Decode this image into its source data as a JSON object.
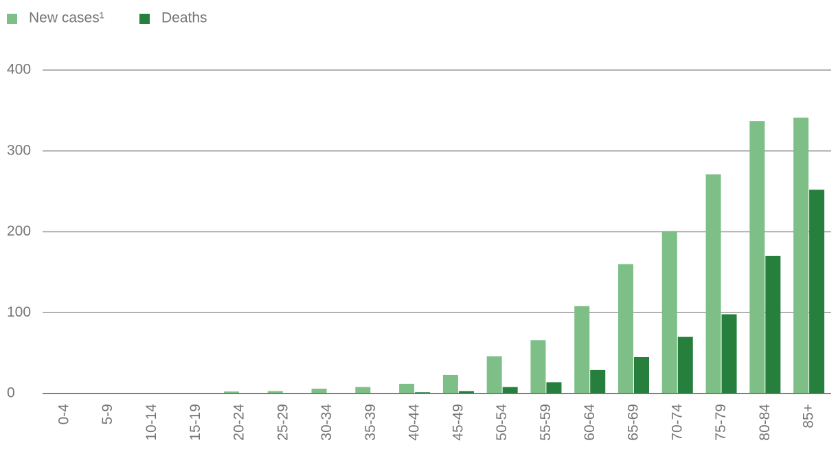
{
  "chart_data": {
    "type": "bar",
    "categories": [
      "0-4",
      "5-9",
      "10-14",
      "15-19",
      "20-24",
      "25-29",
      "30-34",
      "35-39",
      "40-44",
      "45-49",
      "50-54",
      "55-59",
      "60-64",
      "65-69",
      "70-74",
      "75-79",
      "80-84",
      "85+"
    ],
    "series": [
      {
        "name": "New cases¹",
        "color": "#7dbf87",
        "values": [
          0,
          0,
          0,
          0,
          2.5,
          3,
          6,
          8,
          12,
          23,
          46,
          66,
          108,
          160,
          201,
          271,
          337,
          341
        ]
      },
      {
        "name": "Deaths",
        "color": "#267f3d",
        "values": [
          0,
          0,
          0,
          0,
          0,
          0,
          0,
          0,
          1.5,
          3,
          8,
          14,
          29,
          45,
          70,
          98,
          170,
          252
        ]
      }
    ],
    "ylim": [
      0,
      400
    ],
    "yticks": [
      0,
      100,
      200,
      300,
      400
    ],
    "grid": true,
    "legend": "top-left"
  }
}
